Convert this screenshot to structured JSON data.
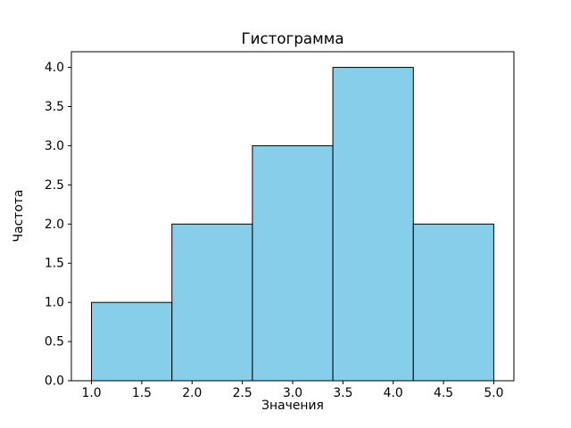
{
  "figure": {
    "background": "#ffffff",
    "title": "Гистограмма",
    "xlabel": "Значения",
    "ylabel": "Частота"
  },
  "chart_data": {
    "type": "bar",
    "subtype": "histogram",
    "title": "Гистограмма",
    "xlabel": "Значения",
    "ylabel": "Частота",
    "bin_edges": [
      1.0,
      1.8,
      2.6,
      3.4,
      4.2,
      5.0
    ],
    "values": [
      1,
      2,
      3,
      4,
      2
    ],
    "xticks": [
      1.0,
      1.5,
      2.0,
      2.5,
      3.0,
      3.5,
      4.0,
      4.5,
      5.0
    ],
    "yticks": [
      0.0,
      0.5,
      1.0,
      1.5,
      2.0,
      2.5,
      3.0,
      3.5,
      4.0
    ],
    "xlim": [
      0.8,
      5.2
    ],
    "ylim": [
      0,
      4.2
    ],
    "bar_fill": "#87CEEB",
    "bar_edge": "#000000",
    "axis_color": "#000000",
    "grid": false,
    "legend_position": "none"
  }
}
